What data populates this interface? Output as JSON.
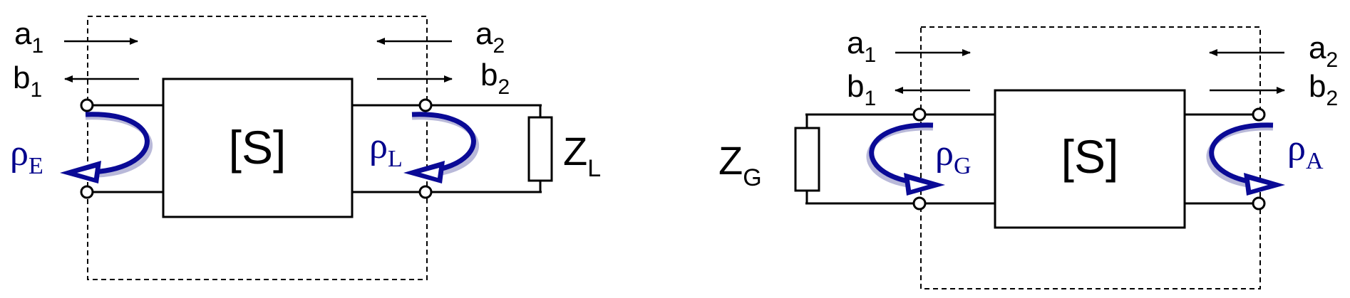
{
  "diagrams": [
    {
      "id": "left",
      "block_label": "[S]",
      "incident_in": {
        "base": "a",
        "sub": "1"
      },
      "reflected_in": {
        "base": "b",
        "sub": "1"
      },
      "incident_out": {
        "base": "a",
        "sub": "2"
      },
      "reflected_out": {
        "base": "b",
        "sub": "2"
      },
      "rho_in": {
        "base": "ρ",
        "sub": "E"
      },
      "rho_out": {
        "base": "ρ",
        "sub": "L"
      },
      "impedance": {
        "base": "Z",
        "sub": "L"
      }
    },
    {
      "id": "right",
      "block_label": "[S]",
      "incident_in": {
        "base": "a",
        "sub": "1"
      },
      "reflected_in": {
        "base": "b",
        "sub": "1"
      },
      "incident_out": {
        "base": "a",
        "sub": "2"
      },
      "reflected_out": {
        "base": "b",
        "sub": "2"
      },
      "rho_in": {
        "base": "ρ",
        "sub": "G"
      },
      "rho_out": {
        "base": "ρ",
        "sub": "A"
      },
      "impedance": {
        "base": "Z",
        "sub": "G"
      }
    }
  ],
  "colors": {
    "reflection_arrow": "#0a0a96",
    "rho_text": "#00008c",
    "lines": "#000000"
  }
}
